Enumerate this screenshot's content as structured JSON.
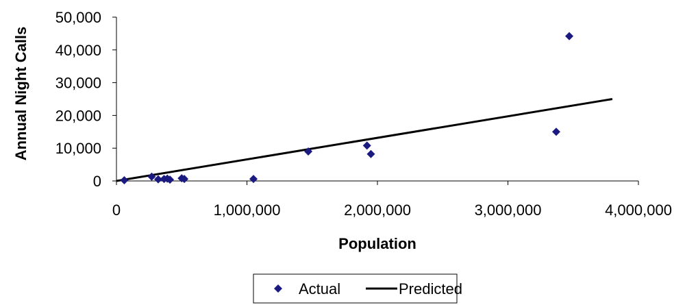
{
  "chart_data": {
    "type": "scatter",
    "title": "",
    "xlabel": "Population",
    "ylabel": "Annual Night Calls",
    "xlim": [
      0,
      4000000
    ],
    "ylim": [
      0,
      50000
    ],
    "x_ticks": [
      0,
      1000000,
      2000000,
      3000000,
      4000000
    ],
    "x_tick_labels": [
      "0",
      "1,000,000",
      "2,000,000",
      "3,000,000",
      "4,000,000"
    ],
    "y_ticks": [
      0,
      10000,
      20000,
      30000,
      40000,
      50000
    ],
    "y_tick_labels": [
      "0",
      "10,000",
      "20,000",
      "30,000",
      "40,000",
      "50,000"
    ],
    "grid": false,
    "legend": {
      "position": "bottom",
      "entries": [
        "Actual",
        "Predicted"
      ]
    },
    "series": [
      {
        "name": "Actual",
        "kind": "scatter",
        "marker": "diamond",
        "color": "#1a1a80",
        "points": [
          [
            60000,
            200
          ],
          [
            270000,
            1300
          ],
          [
            320000,
            500
          ],
          [
            365000,
            600
          ],
          [
            390000,
            700
          ],
          [
            410000,
            400
          ],
          [
            500000,
            800
          ],
          [
            520000,
            600
          ],
          [
            1050000,
            600
          ],
          [
            1470000,
            9000
          ],
          [
            1920000,
            10800
          ],
          [
            1950000,
            8200
          ],
          [
            3370000,
            15000
          ],
          [
            3470000,
            44200
          ]
        ]
      },
      {
        "name": "Predicted",
        "kind": "line",
        "color": "#000000",
        "points": [
          [
            0,
            0
          ],
          [
            3800000,
            25000
          ]
        ]
      }
    ]
  }
}
